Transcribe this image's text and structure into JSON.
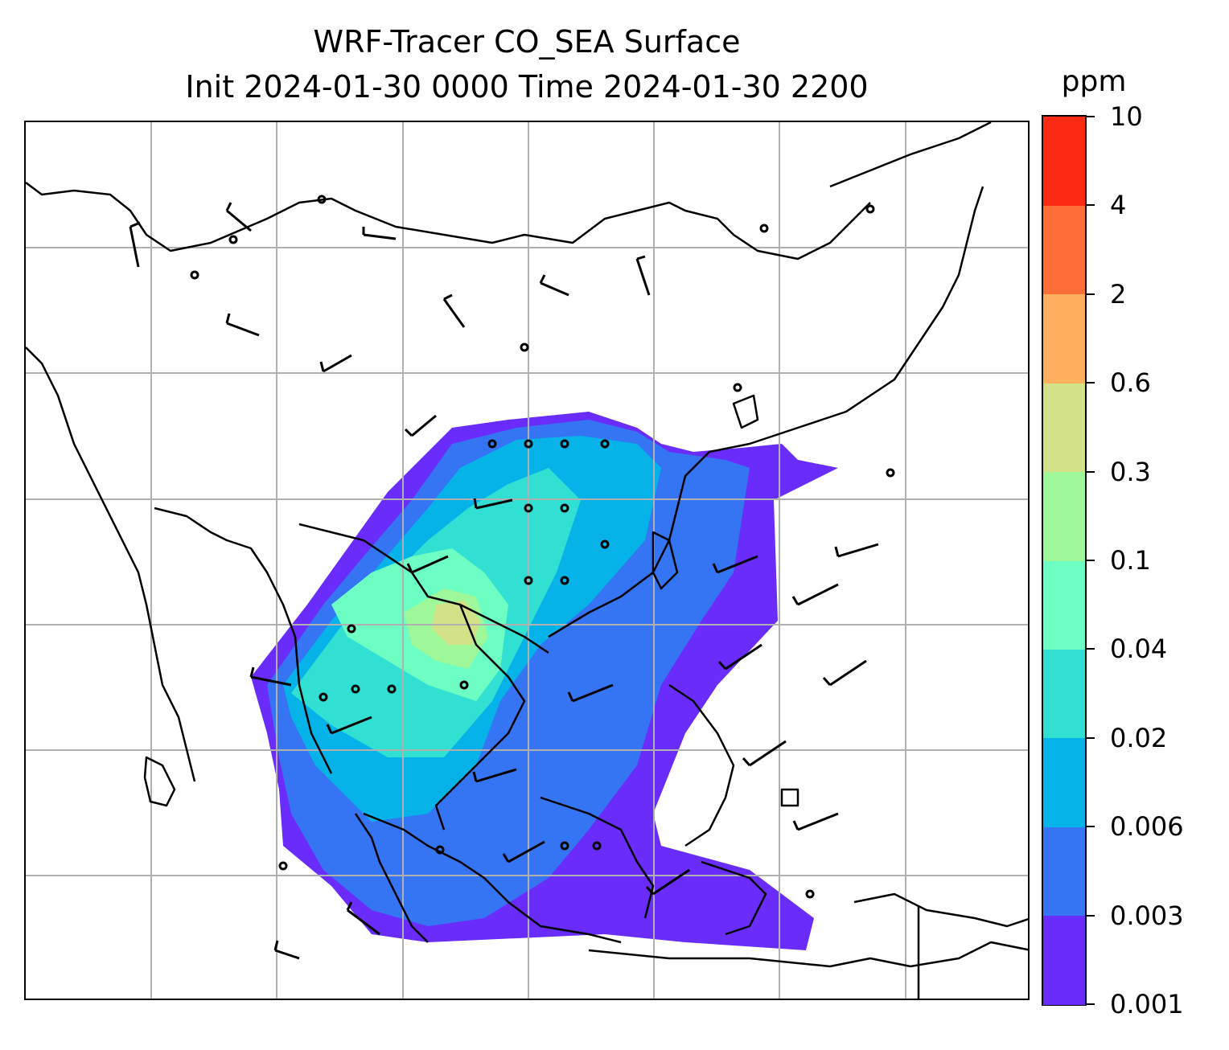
{
  "title": {
    "line1": "WRF-Tracer CO_SEA Surface",
    "line2": "Init 2024-01-30 0000 Time 2024-01-30 2200"
  },
  "colorbar": {
    "unit": "ppm",
    "ticks": [
      "0.001",
      "0.003",
      "0.006",
      "0.02",
      "0.04",
      "0.1",
      "0.3",
      "0.6",
      "2",
      "4",
      "10"
    ],
    "colors": [
      "#6a2cfb",
      "#3574f2",
      "#05b3e8",
      "#32e0d3",
      "#6cfec2",
      "#9ef89a",
      "#d3e289",
      "#ffb05f",
      "#ff6e38",
      "#fd2a13"
    ]
  },
  "map": {
    "gridline_color": "#b0b0b0",
    "coastline_color": "#000000",
    "wind_barb_color": "#000000",
    "field_name": "CO_SEA"
  }
}
